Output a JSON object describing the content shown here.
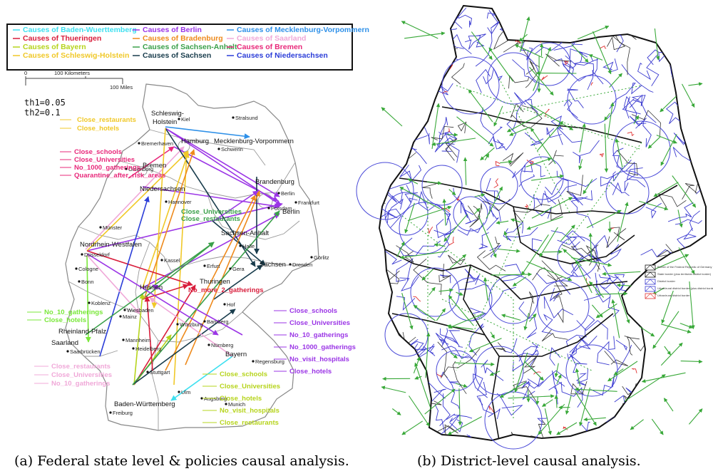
{
  "colors": {
    "baden_wuerttemberg": "#3ee0f0",
    "thueringen": "#d81e3c",
    "bayern": "#b6d41c",
    "schleswig_holstein": "#f0c828",
    "berlin": "#9b35e6",
    "bradenburg": "#ee8a1c",
    "sachsen_anhalt": "#3aa04a",
    "sachsen": "#183c4c",
    "mecklenburg": "#2e90e8",
    "saarland": "#f0a8d8",
    "bremen": "#e8287a",
    "niedersachsen": "#2b3dd8",
    "nrw_policies": "#7ae83a",
    "district_edge": "#38a838",
    "district_border": "#3a3ad0",
    "district_circle": "#4a4ad8"
  },
  "legend": [
    {
      "label": "Causes of Baden-Wuerttemberg",
      "color": "#3ee0f0"
    },
    {
      "label": "Causes of Thueringen",
      "color": "#d81e3c"
    },
    {
      "label": "Causes of Bayern",
      "color": "#b6d41c"
    },
    {
      "label": "Causes of Schleswig-Holstein",
      "color": "#f0c828"
    },
    {
      "label": "Causes of Berlin",
      "color": "#9b35e6"
    },
    {
      "label": "Causes of Bradenburg",
      "color": "#ee8a1c"
    },
    {
      "label": "Causes of Sachsen-Anhalt",
      "color": "#3aa04a"
    },
    {
      "label": "Causes of Sachsen",
      "color": "#183c4c"
    },
    {
      "label": "Causes of Mecklenburg-Vorpommern",
      "color": "#2e90e8"
    },
    {
      "label": "Causes of Saarland",
      "color": "#f0a8d8"
    },
    {
      "label": "Causes of Bremen",
      "color": "#e8287a"
    },
    {
      "label": "Causes of Niedersachsen",
      "color": "#2b3dd8"
    }
  ],
  "scale": {
    "zero": "0",
    "km": "100 Kilometers",
    "miles": "100 Miles"
  },
  "thresholds": {
    "th1": "th1=0.05",
    "th2": "th2=0.1"
  },
  "states": {
    "schleswig_holstein_1": "Schleswig-",
    "schleswig_holstein_2": "Holstein",
    "mecklenburg": "Mecklenburg-Vorpommern",
    "hamburg": "Hamburg",
    "bremen": "Bremen",
    "niedersachsen": "Niedersachsen",
    "brandenburg": "Brandenburg",
    "berlin": "Berlin",
    "sachsen_anhalt": "Sachsen-Anhalt",
    "nrw": "Nordrhein-Westfalen",
    "hessen": "Hessen",
    "thueringen": "Thuringen",
    "sachsen": "Sachsen",
    "rheinland_pfalz": "Rheinland-Pfalz",
    "saarland": "Saarland",
    "bayern": "Bayern",
    "baden_wuerttemberg": "Baden-Württemberg"
  },
  "cities": {
    "kiel": "Kiel",
    "stralsund": "Stralsund",
    "schwerin": "Schwerin",
    "bremerhaven": "Bremerhaven",
    "oldenburg": "Oldenburg",
    "hannover": "Hannover",
    "munster": "Münster",
    "berlin": "Berlin",
    "frankfurt_oder": "Frankfurt",
    "potsdam": "Potsdam",
    "halle": "Halle",
    "gorlitz": "Görlitz",
    "dresden": "Dresden",
    "kassel": "Kassel",
    "erfurt": "Erfurt",
    "gera": "Gera",
    "dusseldorf": "Düsseldorf",
    "cologne": "Cologne",
    "bonn": "Bonn",
    "koblenz": "Koblenz",
    "wiesbaden": "Wiesbaden",
    "mainz": "Mainz",
    "mannheim": "Mannheim",
    "heidelberg": "Heidelberg",
    "saarbrucken": "Saarbrücken",
    "hof": "Hof",
    "bamberg": "Bamberg",
    "wurzburg": "Würzburg",
    "nurnberg": "Nürnberg",
    "regensburg": "Regensburg",
    "stuttgart": "Stuttgart",
    "ulm": "Ulm",
    "augsburg": "Augsburg",
    "munich": "Munich",
    "freiburg": "Freiburg"
  },
  "policies": {
    "sh": [
      "Close_restaurants",
      "Close_hotels"
    ],
    "bremen": [
      "Close_schools",
      "Close_Universities",
      "No_1000_gatherings",
      "Quarantine_after_risk_areas"
    ],
    "sachsen_anhalt": [
      "Close_Universities",
      "Close_restaurants"
    ],
    "thueringen": [
      "No_more_2_gatherings"
    ],
    "nrw": [
      "No_10_gatherings",
      "Close_hotels"
    ],
    "berlin": [
      "Close_schools",
      "Close_Universities",
      "No_10_gatherings",
      "No_1000_gatherings",
      "No_visit_hospitals",
      "Close_hotels"
    ],
    "saarland": [
      "Close_restaurants",
      "Close_Universities",
      "No_10_gatherings"
    ],
    "bayern": [
      "Close_schools",
      "Close_Universities",
      "Close_hotels",
      "No_visit_hospitals",
      "Close_restaurants"
    ]
  },
  "district_legend": [
    "Border of the Federal Republic of Germany",
    "State border (plus territorial district border)",
    "District border",
    "Urban/rural district border (plus district border)",
    "Urban/rural district border"
  ],
  "captions": {
    "a": "(a) Federal state level & policies causal analysis.",
    "b": "(b) District-level causal analysis."
  }
}
